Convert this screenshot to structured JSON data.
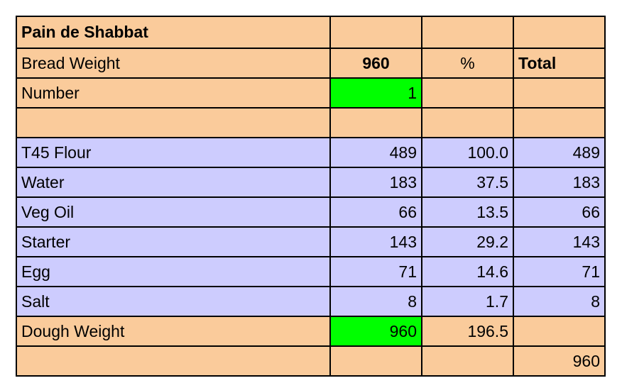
{
  "title": "Pain de Shabbat",
  "colors": {
    "orange": "#FACB9B",
    "lavender": "#CDCCFE",
    "green": "#00FF00"
  },
  "header_row": {
    "label": "Bread Weight",
    "weight": "960",
    "pct_label": "%",
    "total_label": "Total"
  },
  "number_row": {
    "label": "Number",
    "value": "1"
  },
  "ingredients": [
    {
      "name": "T45 Flour",
      "weight": "489",
      "pct": "100.0",
      "total": "489"
    },
    {
      "name": "Water",
      "weight": "183",
      "pct": "37.5",
      "total": "183"
    },
    {
      "name": "Veg Oil",
      "weight": "66",
      "pct": "13.5",
      "total": "66"
    },
    {
      "name": "Starter",
      "weight": "143",
      "pct": "29.2",
      "total": "143"
    },
    {
      "name": "Egg",
      "weight": "71",
      "pct": "14.6",
      "total": "71"
    },
    {
      "name": "Salt",
      "weight": "8",
      "pct": "1.7",
      "total": "8"
    }
  ],
  "dough_row": {
    "label": "Dough Weight",
    "weight": "960",
    "pct": "196.5"
  },
  "final_total": "960"
}
